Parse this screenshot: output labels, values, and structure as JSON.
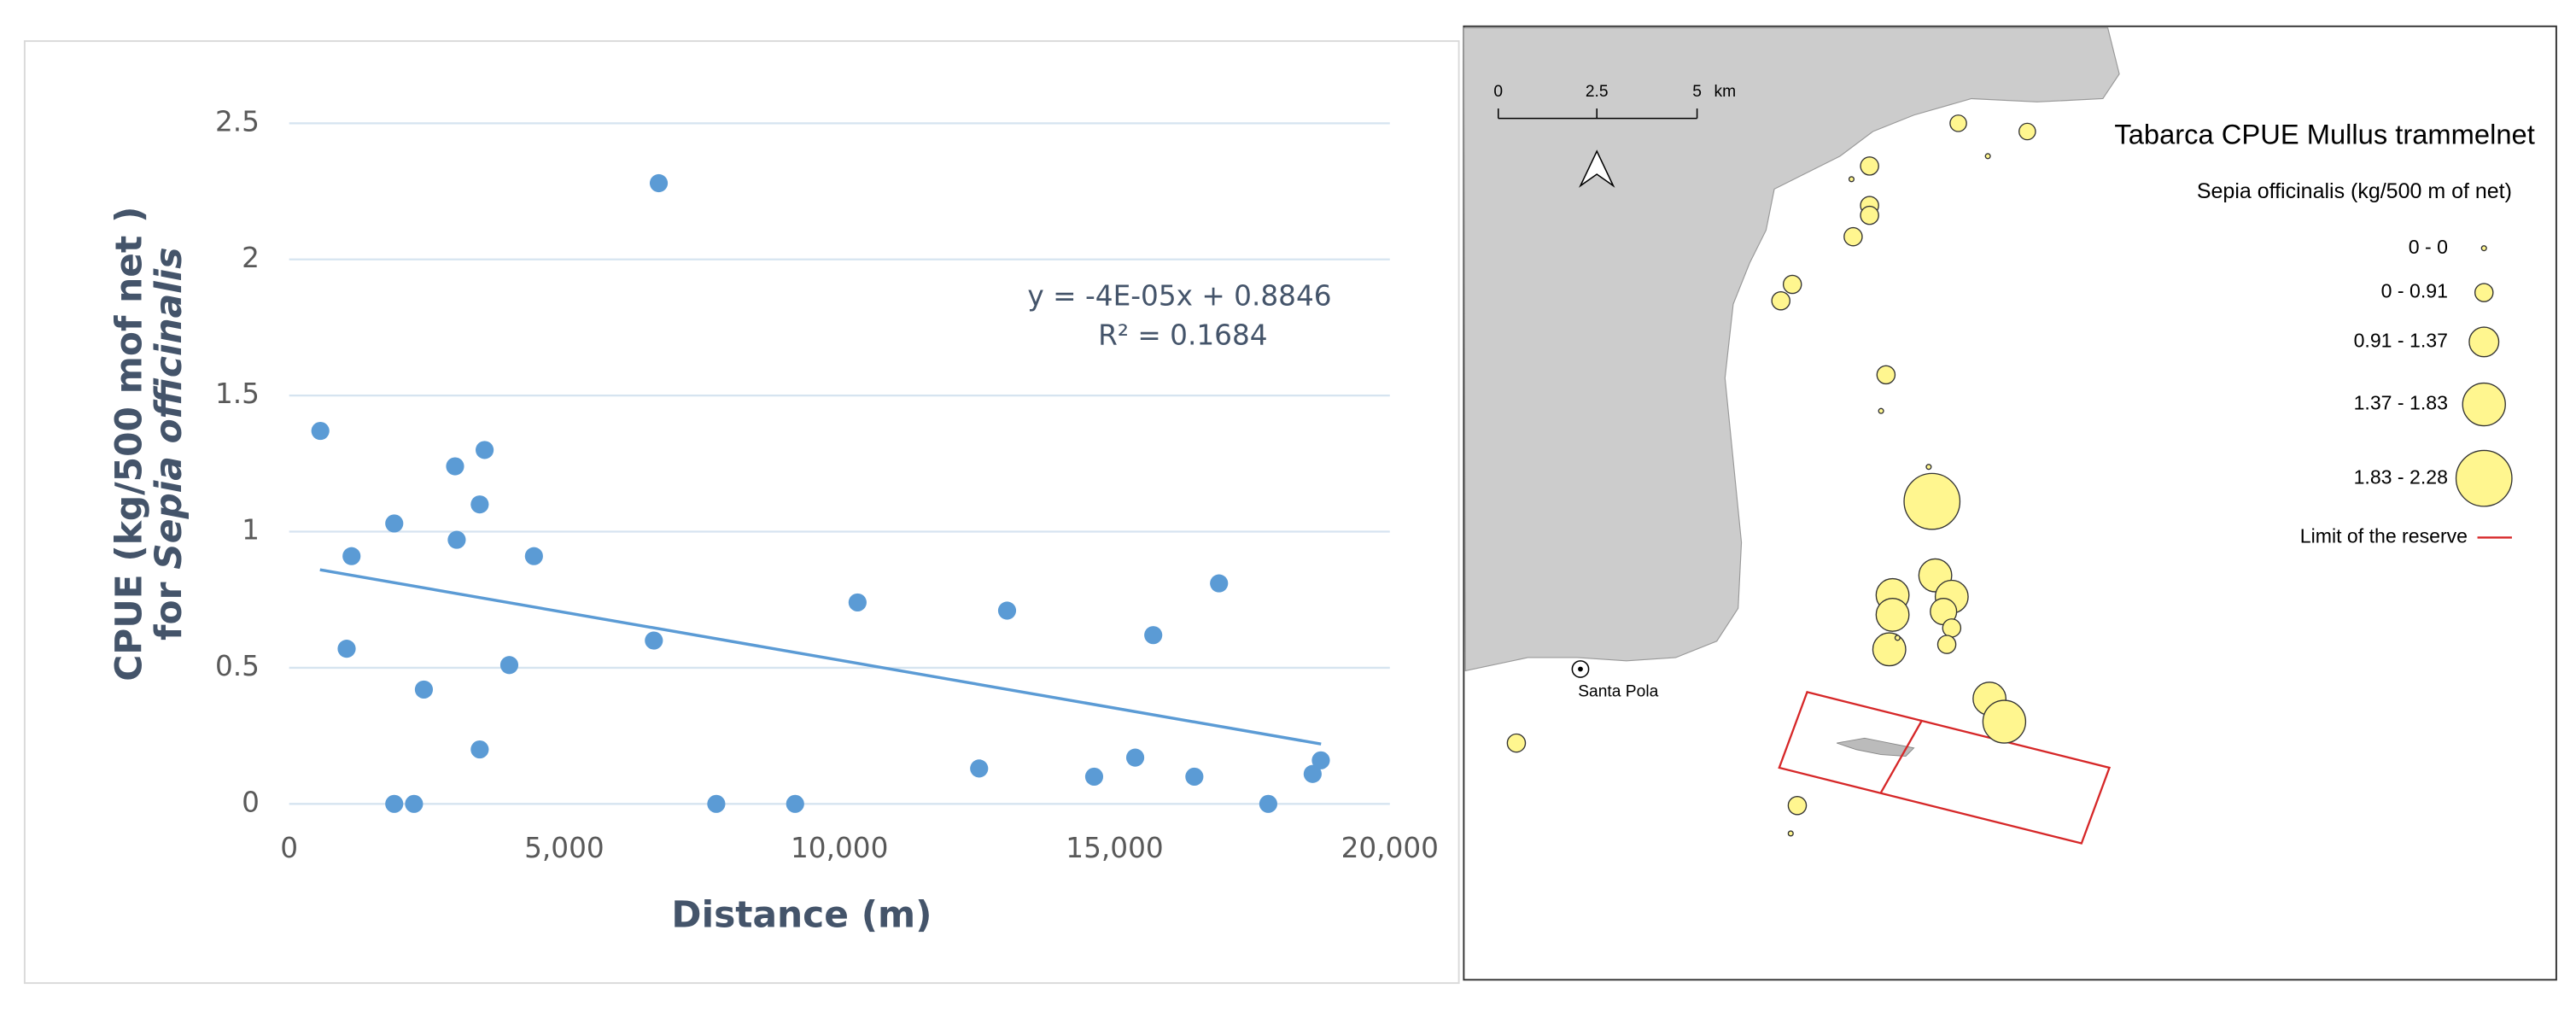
{
  "chart_data": {
    "type": "scatter",
    "xlabel": "Distance (m)",
    "ylabel": {
      "line1": "CPUE  (kg/500 mof net )",
      "line2_prefix": "for ",
      "line2_species": "Sepia officinalis"
    },
    "annotations": [
      "y = -4E-05x + 0.8846",
      "R² = 0.1684"
    ],
    "x": [
      567,
      1134,
      1045,
      1910,
      1910,
      2269,
      2448,
      3015,
      3045,
      3463,
      3552,
      3463,
      4000,
      4448,
      6627,
      6716,
      7761,
      9194,
      10328,
      12537,
      13045,
      14627,
      15373,
      15701,
      16448,
      16896,
      17791,
      18597,
      18746
    ],
    "values": [
      1.37,
      0.91,
      0.57,
      1.03,
      0,
      0,
      0.42,
      1.24,
      0.97,
      1.1,
      1.3,
      0.2,
      0.51,
      0.91,
      0.6,
      2.28,
      0,
      0,
      0.74,
      0.13,
      0.71,
      0.1,
      0.17,
      0.62,
      0.1,
      0.81,
      0,
      0.11,
      0.16
    ],
    "color": "#5b9bd5",
    "trendline": {
      "x": [
        560,
        18750
      ],
      "values": [
        0.86,
        0.22
      ],
      "color": "#5b9bd5"
    },
    "xlim": [
      0,
      20000
    ],
    "ylim": [
      0,
      2.5
    ],
    "xticks": [
      0,
      {
        "value": 5000,
        "label": "5,000"
      },
      {
        "value": 10000,
        "label": "10,000"
      },
      {
        "value": 15000,
        "label": "15,000"
      },
      {
        "value": 20000,
        "label": "20,000"
      }
    ],
    "yticks": [
      0,
      0.5,
      1,
      1.5,
      2,
      2.5
    ],
    "grid": true
  },
  "map": {
    "title": "Tabarca CPUE Mullus trammelnet",
    "legend_title": "Sepia officinalis (kg/500 m of net)",
    "legend_classes": [
      "0 - 0",
      "0 - 0.91",
      "0.91 - 1.37",
      "1.37 - 1.83",
      "1.83 - 2.28"
    ],
    "reserve_label": "Limit of the reserve",
    "place_label": "Santa Pola",
    "scale_labels": [
      "0",
      "2.5",
      "5",
      "km"
    ]
  }
}
